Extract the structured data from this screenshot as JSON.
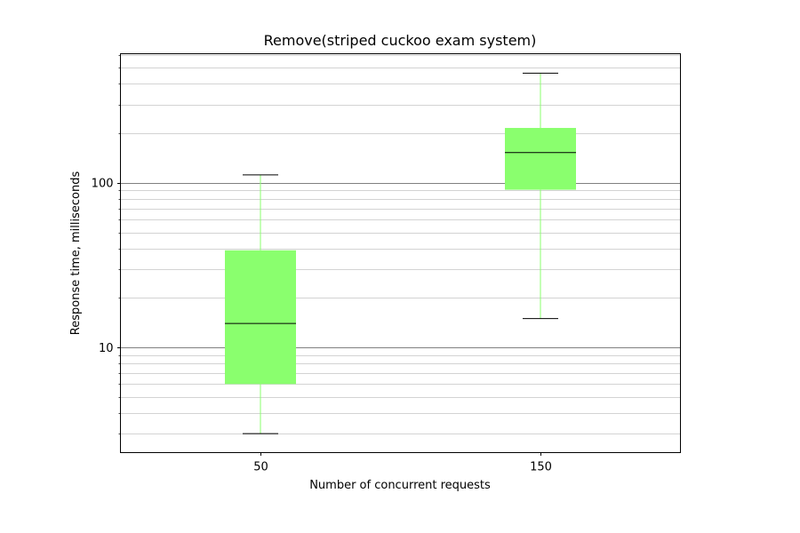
{
  "chart_data": {
    "type": "box",
    "title": "Remove(striped cuckoo exam system)",
    "xlabel": "Number of concurrent requests",
    "ylabel": "Response time, milliseconds",
    "yscale": "log",
    "ylim": [
      2.3,
      610
    ],
    "y_tick_labels": [
      {
        "value": 10,
        "label": "10"
      },
      {
        "value": 100,
        "label": "100"
      }
    ],
    "categories": [
      "50",
      "150"
    ],
    "boxes": [
      {
        "category": "50",
        "whisker_low": 3,
        "q1": 6,
        "median": 14,
        "q3": 39,
        "whisker_high": 112
      },
      {
        "category": "150",
        "whisker_low": 15,
        "q1": 91,
        "median": 153,
        "q3": 216,
        "whisker_high": 465
      }
    ],
    "colors": {
      "box_fill": "#8aff6e",
      "whisker": "#8aff6e",
      "median": "#000000",
      "cap": "#000000",
      "major_grid": "#808080",
      "minor_grid": "#d3d3d3"
    },
    "grid": true
  }
}
